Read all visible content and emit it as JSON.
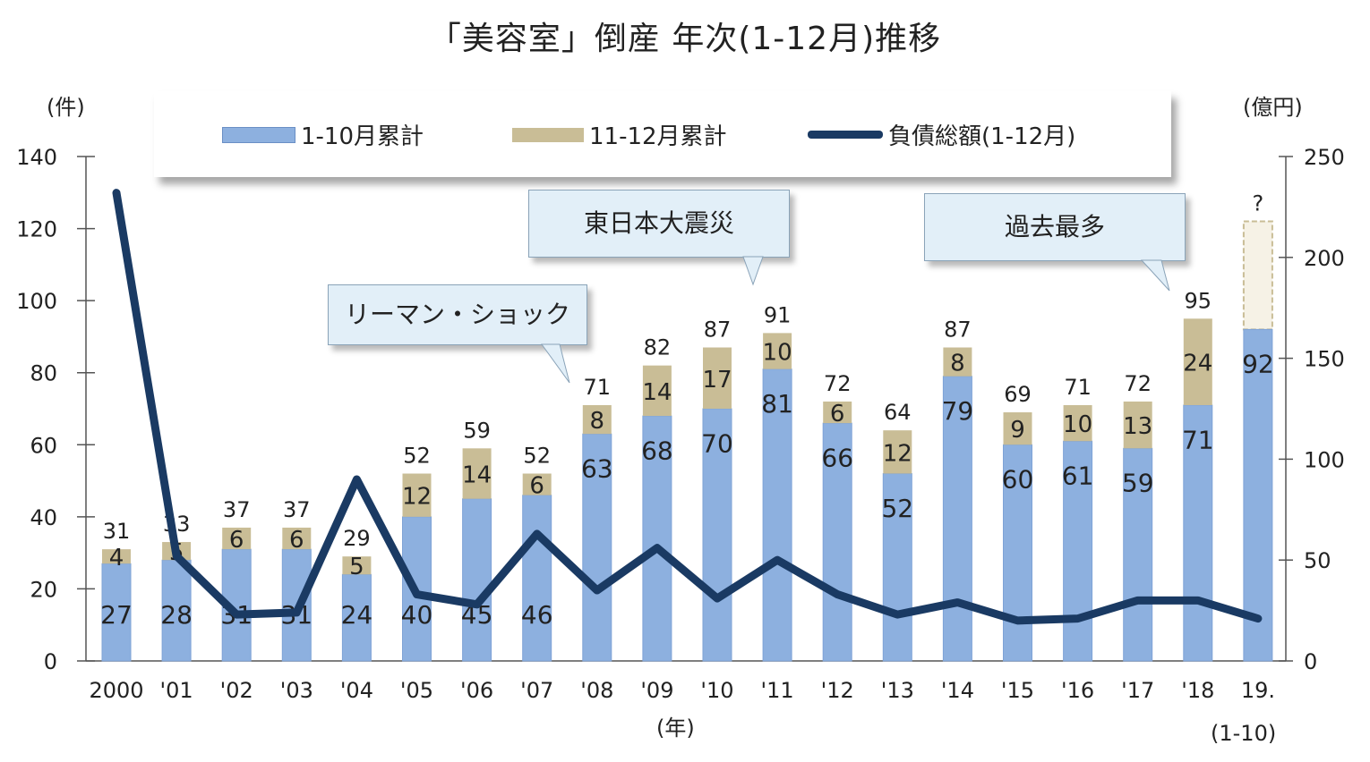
{
  "title": "「美容室」倒産 年次(1-12月)推移",
  "units": {
    "left": "(件)",
    "right": "(億円)",
    "x": "(年)"
  },
  "legend": {
    "items": [
      {
        "label": "1-10月累計",
        "color": "#8db0df"
      },
      {
        "label": "11-12月累計",
        "color": "#c9bd96"
      },
      {
        "label": "負債総額(1-12月)",
        "color": "#1a3a63"
      }
    ]
  },
  "callouts": {
    "lehman": "リーマン・ショック",
    "earthquake": "東日本大震災",
    "record": "過去最多"
  },
  "last_note": "(1-10)",
  "chart_data": {
    "type": "bar",
    "categories": [
      "2000",
      "'01",
      "'02",
      "'03",
      "'04",
      "'05",
      "'06",
      "'07",
      "'08",
      "'09",
      "'10",
      "'11",
      "'12",
      "'13",
      "'14",
      "'15",
      "'16",
      "'17",
      "'18",
      "19."
    ],
    "series": [
      {
        "name": "1-10月累計",
        "values": [
          27,
          28,
          31,
          31,
          24,
          40,
          45,
          46,
          63,
          68,
          70,
          81,
          66,
          52,
          79,
          60,
          61,
          59,
          71,
          92
        ]
      },
      {
        "name": "11-12月累計",
        "values": [
          4,
          5,
          6,
          6,
          5,
          12,
          14,
          6,
          8,
          14,
          17,
          10,
          6,
          12,
          8,
          9,
          10,
          13,
          24,
          null
        ]
      },
      {
        "name": "負債総額(1-12月)",
        "axis": "right",
        "type": "line",
        "values": [
          232,
          52,
          23,
          24,
          90,
          33,
          28,
          63,
          35,
          56,
          31,
          50,
          33,
          23,
          29,
          20,
          21,
          30,
          30,
          21
        ]
      }
    ],
    "totals": [
      "31",
      "33",
      "37",
      "37",
      "29",
      "52",
      "59",
      "52",
      "71",
      "82",
      "87",
      "91",
      "72",
      "64",
      "87",
      "69",
      "71",
      "72",
      "95",
      "?"
    ],
    "last_bar_projection": 122,
    "y_left": {
      "min": 0,
      "max": 140,
      "ticks": [
        "0",
        "20",
        "40",
        "60",
        "80",
        "100",
        "120",
        "140"
      ]
    },
    "y_right": {
      "min": 0,
      "max": 250,
      "ticks": [
        "0",
        "50",
        "100",
        "150",
        "200",
        "250"
      ]
    },
    "grid": false,
    "legend_position": "top"
  }
}
